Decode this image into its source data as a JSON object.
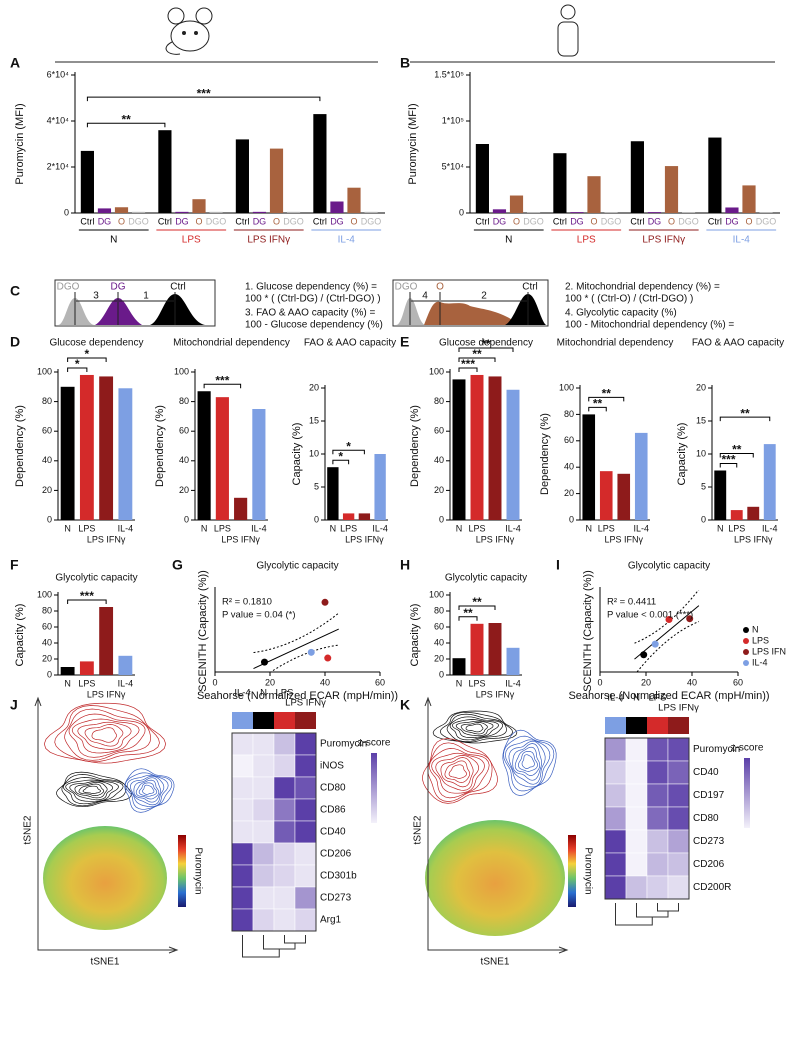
{
  "chart_data": [
    {
      "type": "grouped_bar",
      "panel": "A",
      "ylabel": "Puromycin (MFI)",
      "categories": [
        "N",
        "LPS",
        "LPS IFNγ",
        "IL-4"
      ],
      "category_colors": [
        "#000000",
        "#d42a2a",
        "#8e1b1b",
        "#7d9fe3"
      ],
      "series": [
        {
          "name": "Ctrl",
          "color": "#000000",
          "values": [
            27000,
            36000,
            32000,
            43000
          ]
        },
        {
          "name": "DG",
          "color": "#6a1a8a",
          "values": [
            2000,
            500,
            500,
            5000
          ]
        },
        {
          "name": "O",
          "color": "#a8623e",
          "values": [
            2500,
            6000,
            28000,
            11000
          ]
        },
        {
          "name": "DGO",
          "color": "#b5b5b5",
          "values": [
            500,
            500,
            500,
            500
          ]
        }
      ],
      "ylim": [
        0,
        60000
      ],
      "yticks": [
        0,
        {
          "value": 20000,
          "label": "2*10⁴"
        },
        {
          "value": 40000,
          "label": "4*10⁴"
        },
        {
          "value": 60000,
          "label": "6*10⁴"
        }
      ],
      "annotations": [
        "**",
        "***"
      ]
    },
    {
      "type": "grouped_bar",
      "panel": "B",
      "ylabel": "Puromycin (MFI)",
      "categories": [
        "N",
        "LPS",
        "LPS IFNγ",
        "IL-4"
      ],
      "category_colors": [
        "#000000",
        "#d42a2a",
        "#8e1b1b",
        "#7d9fe3"
      ],
      "series": [
        {
          "name": "Ctrl",
          "color": "#000000",
          "values": [
            75000,
            65000,
            78000,
            82000
          ]
        },
        {
          "name": "DG",
          "color": "#6a1a8a",
          "values": [
            4000,
            1000,
            1000,
            6000
          ]
        },
        {
          "name": "O",
          "color": "#a8623e",
          "values": [
            19000,
            40000,
            51000,
            30000
          ]
        },
        {
          "name": "DGO",
          "color": "#b5b5b5",
          "values": [
            1000,
            1000,
            1000,
            1000
          ]
        }
      ],
      "ylim": [
        0,
        150000
      ],
      "yticks": [
        0,
        {
          "value": 50000,
          "label": "5*10⁴"
        },
        {
          "value": 100000,
          "label": "1*10⁵"
        },
        {
          "value": 150000,
          "label": "1.5*10⁵"
        }
      ]
    },
    {
      "type": "bar",
      "panel": "D",
      "title": "Glucose dependency",
      "ylabel": "Dependency (%)",
      "categories": [
        "N",
        "LPS",
        "LPS IFNγ",
        "IL-4"
      ],
      "colors": [
        "#000000",
        "#d42a2a",
        "#8e1b1b",
        "#7d9fe3"
      ],
      "values": [
        90,
        98,
        97,
        89
      ],
      "ylim": [
        0,
        100
      ],
      "yticks": [
        0,
        20,
        40,
        60,
        80,
        100
      ],
      "annotations": [
        "*",
        "*"
      ]
    },
    {
      "type": "bar",
      "title": "Mitochondrial dependency",
      "ylabel": "Dependency (%)",
      "categories": [
        "N",
        "LPS",
        "LPS IFNγ",
        "IL-4"
      ],
      "colors": [
        "#000000",
        "#d42a2a",
        "#8e1b1b",
        "#7d9fe3"
      ],
      "values": [
        87,
        83,
        15,
        75
      ],
      "ylim": [
        0,
        100
      ],
      "yticks": [
        0,
        20,
        40,
        60,
        80,
        100
      ],
      "annotations": [
        "***"
      ]
    },
    {
      "type": "bar",
      "title": "FAO & AAO capacity",
      "ylabel": "Capacity (%)",
      "categories": [
        "N",
        "LPS",
        "LPS IFNγ",
        "IL-4"
      ],
      "colors": [
        "#000000",
        "#d42a2a",
        "#8e1b1b",
        "#7d9fe3"
      ],
      "values": [
        8,
        1,
        1,
        10
      ],
      "ylim": [
        0,
        20
      ],
      "yticks": [
        0,
        5,
        10,
        15,
        20
      ],
      "annotations": [
        "*",
        "*"
      ]
    },
    {
      "type": "bar",
      "panel": "E",
      "title": "Glucose dependency",
      "ylabel": "Dependency (%)",
      "categories": [
        "N",
        "LPS",
        "LPS IFNγ",
        "IL-4"
      ],
      "colors": [
        "#000000",
        "#d42a2a",
        "#8e1b1b",
        "#7d9fe3"
      ],
      "values": [
        95,
        98,
        97,
        88
      ],
      "ylim": [
        0,
        100
      ],
      "yticks": [
        0,
        20,
        40,
        60,
        80,
        100
      ],
      "annotations": [
        "***",
        "**",
        "**"
      ]
    },
    {
      "type": "bar",
      "title": "Mitochondrial dependency",
      "ylabel": "Dependency (%)",
      "categories": [
        "N",
        "LPS",
        "LPS IFNγ",
        "IL-4"
      ],
      "colors": [
        "#000000",
        "#d42a2a",
        "#8e1b1b",
        "#7d9fe3"
      ],
      "values": [
        80,
        37,
        35,
        66
      ],
      "ylim": [
        0,
        100
      ],
      "yticks": [
        0,
        20,
        40,
        60,
        80,
        100
      ],
      "annotations": [
        "**",
        "**"
      ]
    },
    {
      "type": "bar",
      "title": "FAO & AAO capacity",
      "ylabel": "Capacity (%)",
      "categories": [
        "N",
        "LPS",
        "LPS IFNγ",
        "IL-4"
      ],
      "colors": [
        "#000000",
        "#d42a2a",
        "#8e1b1b",
        "#7d9fe3"
      ],
      "values": [
        7.5,
        1.5,
        2,
        11.5
      ],
      "ylim": [
        0,
        20
      ],
      "yticks": [
        0,
        5,
        10,
        15,
        20
      ],
      "annotations": [
        "***",
        "**",
        "**"
      ]
    },
    {
      "type": "bar",
      "panel": "F",
      "title": "Glycolytic capacity",
      "ylabel": "Capacity (%)",
      "categories": [
        "N",
        "LPS",
        "LPS IFNγ",
        "IL-4"
      ],
      "colors": [
        "#000000",
        "#d42a2a",
        "#8e1b1b",
        "#7d9fe3"
      ],
      "values": [
        10,
        17,
        85,
        24
      ],
      "ylim": [
        0,
        100
      ],
      "yticks": [
        0,
        20,
        40,
        60,
        80,
        100
      ],
      "annotations": [
        "***"
      ]
    },
    {
      "type": "scatter",
      "panel": "G",
      "title": "Glycolytic capacity",
      "xlabel": "Seahorse (Normalized ECAR (mpH/min))",
      "ylabel": "SCENITH (Capacity (%))",
      "series": [
        {
          "color": "#000000",
          "x": [
            18
          ],
          "values": [
            12
          ]
        },
        {
          "color": "#d42a2a",
          "x": [
            41
          ],
          "values": [
            17
          ]
        },
        {
          "color": "#8e1b1b",
          "x": [
            40
          ],
          "values": [
            85
          ]
        },
        {
          "color": "#7d9fe3",
          "x": [
            35
          ],
          "values": [
            24
          ]
        }
      ],
      "xlim": [
        0,
        60
      ],
      "xticks": [
        0,
        20,
        40,
        60
      ],
      "ylim": [
        0,
        100
      ],
      "annotations": [
        "R² = 0.1810",
        "P value = 0.04 (*)"
      ]
    },
    {
      "type": "bar",
      "panel": "H",
      "title": "Glycolytic capacity",
      "ylabel": "Capacity (%)",
      "categories": [
        "N",
        "LPS",
        "LPS IFNγ",
        "IL-4"
      ],
      "colors": [
        "#000000",
        "#d42a2a",
        "#8e1b1b",
        "#7d9fe3"
      ],
      "values": [
        21,
        64,
        65,
        34
      ],
      "ylim": [
        0,
        100
      ],
      "yticks": [
        0,
        20,
        40,
        60,
        80,
        100
      ],
      "annotations": [
        "**",
        "**"
      ]
    },
    {
      "type": "scatter",
      "panel": "I",
      "title": "Glycolytic capacity",
      "xlabel": "Seahorse (Normalized ECAR (mpH/min))",
      "ylabel": "SCENITH (Capacity (%))",
      "series": [
        {
          "name": "N",
          "color": "#000000",
          "x": [
            19
          ],
          "values": [
            21
          ]
        },
        {
          "name": "LPS",
          "color": "#d42a2a",
          "x": [
            30
          ],
          "values": [
            64
          ]
        },
        {
          "name": "LPS IFNγ",
          "color": "#8e1b1b",
          "x": [
            39
          ],
          "values": [
            65
          ]
        },
        {
          "name": "IL-4",
          "color": "#7d9fe3",
          "x": [
            24
          ],
          "values": [
            34
          ]
        }
      ],
      "xlim": [
        0,
        60
      ],
      "xticks": [
        0,
        20,
        40,
        60
      ],
      "ylim": [
        0,
        100
      ],
      "legend": true,
      "annotations": [
        "R² = 0.4411",
        "P value < 0.001 (***)"
      ]
    }
  ],
  "panel_c": {
    "panel": "C",
    "left": {
      "labels": [
        "DGO",
        "DG",
        "Ctrl"
      ],
      "gaps": [
        "3",
        "1"
      ],
      "lines": [
        "1. Glucose dependency (%) =",
        "100 * ( (Ctrl-DG) / (Ctrl-DGO) )",
        "3. FAO & AAO capacity (%) =",
        "100 - Glucose dependency (%)"
      ]
    },
    "right": {
      "labels": [
        "DGO",
        "O",
        "Ctrl"
      ],
      "gaps": [
        "4",
        "2"
      ],
      "lines": [
        "2. Mitochondrial dependency (%) =",
        "100 * ( (Ctrl-O) / (Ctrl-DGO) )",
        "4. Glycolytic capacity (%)",
        "100 - Mitochondrial dependency (%) ="
      ]
    }
  },
  "tsne_panels": [
    {
      "panel": "J",
      "xlabel": "tSNE1",
      "ylabel": "tSNE2",
      "colorbar_label": "Puromycin",
      "heatmap": {
        "columns": [
          "IL-4",
          "N",
          "LPS",
          "LPS IFNγ"
        ],
        "column_colors": [
          "#7d9fe3",
          "#000000",
          "#d42a2a",
          "#8e1b1b"
        ],
        "rows": [
          "Puromycin",
          "iNOS",
          "CD80",
          "CD86",
          "CD40",
          "CD206",
          "CD301b",
          "CD273",
          "Arg1"
        ],
        "values": [
          [
            -0.8,
            -0.8,
            -0.3,
            1.5
          ],
          [
            -1,
            -0.8,
            -0.6,
            1.5
          ],
          [
            -0.8,
            -0.8,
            1.5,
            1.2
          ],
          [
            -0.8,
            -0.6,
            0.7,
            1.5
          ],
          [
            -0.8,
            -0.8,
            1.1,
            1.5
          ],
          [
            1.5,
            -0.2,
            -0.6,
            -0.8
          ],
          [
            1.5,
            -0.4,
            -0.6,
            -0.8
          ],
          [
            1.5,
            -0.8,
            -0.8,
            0.3
          ],
          [
            1.5,
            -0.6,
            -0.8,
            -0.6
          ]
        ],
        "scale_label": "z-score"
      }
    },
    {
      "panel": "K",
      "xlabel": "tSNE1",
      "ylabel": "tSNE2",
      "colorbar_label": "Puromycin",
      "heatmap": {
        "columns": [
          "IL-4",
          "N",
          "LPS",
          "LPS IFNγ"
        ],
        "column_colors": [
          "#7d9fe3",
          "#000000",
          "#d42a2a",
          "#8e1b1b"
        ],
        "rows": [
          "Puromycin",
          "CD40",
          "CD197",
          "CD80",
          "CD273",
          "CD206",
          "CD200R"
        ],
        "values": [
          [
            0.3,
            -1,
            1.2,
            1.3
          ],
          [
            -0.5,
            -1,
            1.3,
            1.0
          ],
          [
            -0.3,
            -1,
            1.1,
            1.3
          ],
          [
            0.2,
            -1,
            0.9,
            1.3
          ],
          [
            1.5,
            -1,
            -0.3,
            0.1
          ],
          [
            1.5,
            -1,
            -0.2,
            -0.3
          ],
          [
            1.5,
            -0.3,
            -0.5,
            -0.7
          ]
        ],
        "scale_label": "z-score"
      }
    }
  ]
}
